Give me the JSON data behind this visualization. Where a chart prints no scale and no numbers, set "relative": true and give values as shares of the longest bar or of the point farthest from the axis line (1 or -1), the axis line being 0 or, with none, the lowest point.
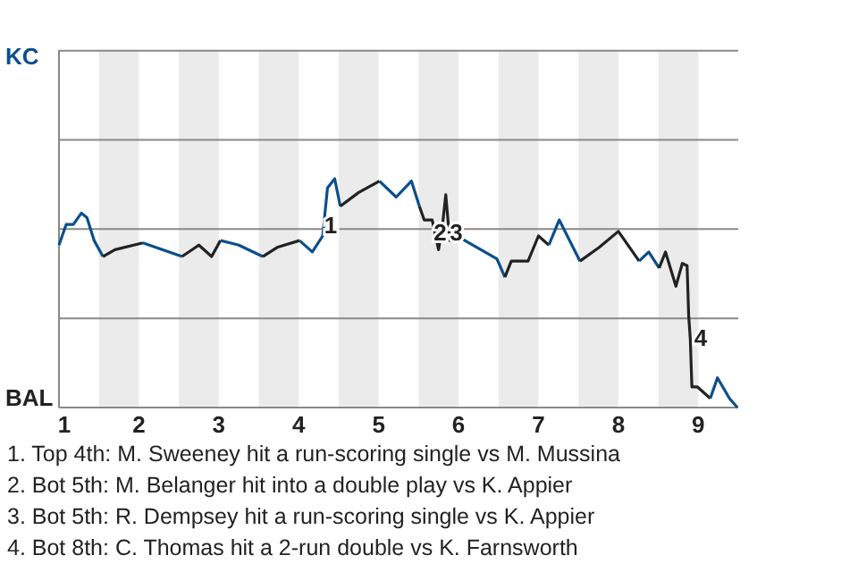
{
  "chart_data": {
    "type": "line",
    "relative": true,
    "xlim": [
      1,
      9.5
    ],
    "xticks": [
      1,
      2,
      3,
      4,
      5,
      6,
      7,
      8,
      9
    ],
    "marker": "none",
    "line_style": "solid",
    "ref_lines": [
      {
        "axis": "y",
        "value": 0.39,
        "color": "#888888"
      },
      {
        "axis": "y",
        "value": 0.78,
        "color": "#888888"
      },
      {
        "axis": "y",
        "value": 1.17,
        "color": "#888888"
      },
      {
        "axis": "y",
        "value": 1.56,
        "color": "#888888"
      }
    ],
    "series": [
      {
        "color": "#0b4f8c",
        "x": [
          1,
          1.09,
          1.18,
          1.28,
          1.35,
          1.44,
          1.55
        ],
        "values": [
          0.71,
          0.8,
          0.8,
          0.85,
          0.83,
          0.73,
          0.66
        ]
      },
      {
        "color": "#222222",
        "x": [
          1.55,
          1.7,
          2.05
        ],
        "values": [
          0.66,
          0.69,
          0.72
        ]
      },
      {
        "color": "#0b4f8c",
        "x": [
          2.05,
          2.54
        ],
        "values": [
          0.72,
          0.66
        ]
      },
      {
        "color": "#222222",
        "x": [
          2.54,
          2.75,
          2.91,
          3.02
        ],
        "values": [
          0.66,
          0.71,
          0.66,
          0.73
        ]
      },
      {
        "color": "#0b4f8c",
        "x": [
          3.02,
          3.25,
          3.55
        ],
        "values": [
          0.73,
          0.71,
          0.66
        ]
      },
      {
        "color": "#222222",
        "x": [
          3.55,
          3.73,
          4.01
        ],
        "values": [
          0.66,
          0.7,
          0.73
        ]
      },
      {
        "color": "#0b4f8c",
        "x": [
          4.01,
          4.17,
          4.3,
          4.36,
          4.45,
          4.52
        ],
        "values": [
          0.73,
          0.68,
          0.75,
          0.96,
          1,
          0.88
        ]
      },
      {
        "color": "#222222",
        "x": [
          4.52,
          4.75,
          5.01
        ],
        "values": [
          0.88,
          0.94,
          0.99
        ]
      },
      {
        "color": "#0b4f8c",
        "x": [
          5.01,
          5.22,
          5.41,
          5.51
        ],
        "values": [
          0.99,
          0.92,
          0.99,
          0.88
        ]
      },
      {
        "color": "#222222",
        "x": [
          5.51,
          5.57,
          5.67,
          5.75,
          5.8,
          5.84,
          5.89,
          5.95,
          6.03
        ],
        "values": [
          0.88,
          0.82,
          0.82,
          0.69,
          0.8,
          0.93,
          0.73,
          0.77,
          0.74
        ]
      },
      {
        "color": "#0b4f8c",
        "x": [
          6.03,
          6.48,
          6.58
        ],
        "values": [
          0.74,
          0.65,
          0.57
        ]
      },
      {
        "color": "#222222",
        "x": [
          6.58,
          6.66,
          6.87,
          7.0,
          7.13
        ],
        "values": [
          0.57,
          0.64,
          0.64,
          0.75,
          0.71
        ]
      },
      {
        "color": "#0b4f8c",
        "x": [
          7.13,
          7.26,
          7.52
        ],
        "values": [
          0.71,
          0.82,
          0.64
        ]
      },
      {
        "color": "#222222",
        "x": [
          7.52,
          7.76,
          8.0,
          8.26
        ],
        "values": [
          0.64,
          0.7,
          0.77,
          0.64
        ]
      },
      {
        "color": "#0b4f8c",
        "x": [
          8.26,
          8.38,
          8.51
        ],
        "values": [
          0.64,
          0.68,
          0.61
        ]
      },
      {
        "color": "#222222",
        "x": [
          8.51,
          8.59,
          8.72,
          8.8,
          8.86,
          8.88,
          8.9,
          8.92,
          8.99,
          9.15
        ],
        "values": [
          0.61,
          0.68,
          0.53,
          0.63,
          0.62,
          0.4,
          0.3,
          0.09,
          0.09,
          0.04
        ]
      },
      {
        "color": "#0b4f8c",
        "x": [
          9.15,
          9.24,
          9.39,
          9.49
        ],
        "values": [
          0.04,
          0.13,
          0.04,
          0
        ]
      }
    ],
    "bands": [
      {
        "axis": "x",
        "from": 1.5,
        "to": 2,
        "color": "#ebebeb"
      },
      {
        "axis": "x",
        "from": 2.5,
        "to": 3,
        "color": "#ebebeb"
      },
      {
        "axis": "x",
        "from": 3.5,
        "to": 4,
        "color": "#ebebeb"
      },
      {
        "axis": "x",
        "from": 4.5,
        "to": 5,
        "color": "#ebebeb"
      },
      {
        "axis": "x",
        "from": 5.5,
        "to": 6,
        "color": "#ebebeb"
      },
      {
        "axis": "x",
        "from": 6.5,
        "to": 7,
        "color": "#ebebeb"
      },
      {
        "axis": "x",
        "from": 7.5,
        "to": 8,
        "color": "#ebebeb"
      },
      {
        "axis": "x",
        "from": 8.5,
        "to": 9,
        "color": "#ebebeb"
      }
    ],
    "annotations": [
      "KC",
      "BAL",
      {
        "text": "1",
        "x": 4.4,
        "y": 0.8
      },
      {
        "text": "2",
        "x": 5.77,
        "y": 0.77
      },
      {
        "text": "3",
        "x": 5.97,
        "y": 0.77
      },
      {
        "text": "4",
        "x": 9.03,
        "y": 0.31
      },
      "1. Top 4th: M. Sweeney hit a run-scoring single vs M. Mussina",
      "2. Bot 5th: M. Belanger hit into a double play vs K. Appier",
      "3. Bot 5th: R. Dempsey hit a run-scoring single vs K. Appier",
      "4. Bot 8th: C. Thomas hit a 2-run double vs K. Farnsworth"
    ]
  }
}
